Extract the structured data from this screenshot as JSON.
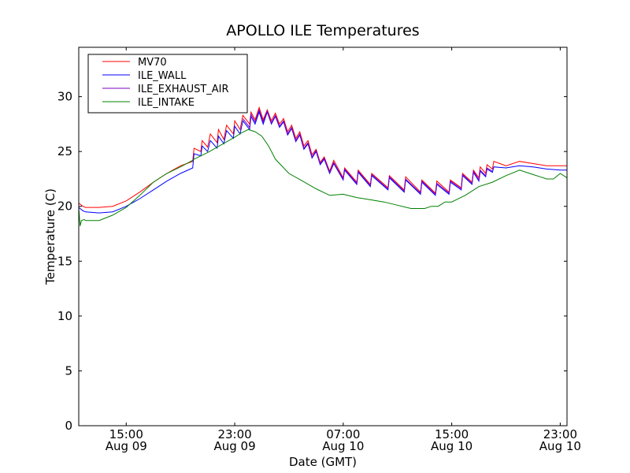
{
  "chart_data": {
    "type": "line",
    "title": "APOLLO ILE Temperatures",
    "xlabel": "Date (GMT)",
    "ylabel": "Temperature (C)",
    "x_unit": "hours since Aug 09 00:00 GMT",
    "xlim": [
      11.5,
      47.5
    ],
    "ylim": [
      0,
      34.5
    ],
    "yticks": [
      0,
      5,
      10,
      15,
      20,
      25,
      30
    ],
    "xticks": [
      {
        "x": 15,
        "line1": "15:00",
        "line2": "Aug 09"
      },
      {
        "x": 23,
        "line1": "23:00",
        "line2": "Aug 09"
      },
      {
        "x": 31,
        "line1": "07:00",
        "line2": "Aug 10"
      },
      {
        "x": 39,
        "line1": "15:00",
        "line2": "Aug 10"
      },
      {
        "x": 47,
        "line1": "23:00",
        "line2": "Aug 10"
      }
    ],
    "legend_position": "top-left",
    "series": [
      {
        "name": "MV70",
        "color": "#ff0000",
        "x": [
          11.5,
          11.8,
          12,
          13,
          14,
          15,
          16,
          17,
          18,
          19,
          19.9,
          20,
          20.5,
          20.6,
          21,
          21.2,
          21.7,
          21.8,
          22.2,
          22.4,
          22.9,
          23,
          23.4,
          23.6,
          24.1,
          24.2,
          24.5,
          24.8,
          25.1,
          25.4,
          25.7,
          26,
          26.3,
          26.6,
          26.9,
          27.2,
          27.5,
          27.8,
          28.1,
          28.4,
          28.7,
          29,
          29.3,
          29.6,
          30,
          30.3,
          31,
          31.1,
          32,
          32.1,
          33,
          33.1,
          34.3,
          34.4,
          35.5,
          35.6,
          36.7,
          36.8,
          37.8,
          37.9,
          38.8,
          38.9,
          39.7,
          39.8,
          40.5,
          40.6,
          41,
          41.1,
          41.5,
          41.6,
          42,
          42.1,
          43,
          44,
          45,
          46,
          47,
          47.5
        ],
        "values": [
          20.3,
          20.0,
          19.9,
          19.9,
          20.0,
          20.5,
          21.3,
          22.2,
          23.0,
          23.7,
          24.1,
          25.3,
          25.0,
          26.0,
          25.4,
          26.6,
          25.8,
          27.0,
          26.1,
          27.4,
          26.6,
          27.8,
          27.0,
          28.3,
          27.5,
          28.6,
          27.9,
          29.0,
          27.9,
          28.8,
          27.8,
          28.5,
          27.5,
          28.0,
          26.8,
          27.4,
          26.2,
          26.8,
          25.5,
          26.0,
          24.7,
          25.2,
          24.0,
          24.5,
          23.2,
          24.2,
          22.6,
          23.5,
          22.2,
          23.3,
          22.0,
          23.0,
          21.7,
          22.8,
          21.5,
          22.7,
          21.3,
          22.4,
          21.2,
          22.3,
          21.3,
          22.4,
          21.7,
          23.0,
          22.2,
          23.3,
          22.6,
          23.6,
          23.0,
          23.8,
          23.4,
          24.1,
          23.7,
          24.1,
          23.9,
          23.7,
          23.7,
          23.7
        ]
      },
      {
        "name": "ILE_WALL",
        "color": "#0000ff",
        "x": [
          11.5,
          11.8,
          12,
          13,
          14,
          15,
          16,
          17,
          18,
          19,
          19.9,
          20,
          20.5,
          20.6,
          21,
          21.2,
          21.7,
          21.8,
          22.2,
          22.4,
          22.9,
          23,
          23.4,
          23.6,
          24.1,
          24.2,
          24.5,
          24.8,
          25.1,
          25.4,
          25.7,
          26,
          26.3,
          26.6,
          26.9,
          27.2,
          27.5,
          27.8,
          28.1,
          28.4,
          28.7,
          29,
          29.3,
          29.6,
          30,
          30.3,
          31,
          31.1,
          32,
          32.1,
          33,
          33.1,
          34.3,
          34.4,
          35.5,
          35.6,
          36.7,
          36.8,
          37.8,
          37.9,
          38.8,
          38.9,
          39.7,
          39.8,
          40.5,
          40.6,
          41,
          41.1,
          41.5,
          41.6,
          42,
          42.1,
          43,
          44,
          45,
          46,
          47,
          47.5
        ],
        "values": [
          19.9,
          19.6,
          19.5,
          19.4,
          19.5,
          20.0,
          20.7,
          21.5,
          22.3,
          23.0,
          23.5,
          24.8,
          24.6,
          25.5,
          25.0,
          26.0,
          25.3,
          26.4,
          25.7,
          26.9,
          26.2,
          27.3,
          26.6,
          27.8,
          27.0,
          28.2,
          27.5,
          28.6,
          27.5,
          28.6,
          27.5,
          28.2,
          27.2,
          27.7,
          26.5,
          27.1,
          25.9,
          26.5,
          25.2,
          25.7,
          24.4,
          25.0,
          23.8,
          24.3,
          23.0,
          23.9,
          22.4,
          23.3,
          22.0,
          23.1,
          21.8,
          22.8,
          21.5,
          22.6,
          21.3,
          22.4,
          21.1,
          22.2,
          21.0,
          22.0,
          21.1,
          22.2,
          21.5,
          22.8,
          22.0,
          23.1,
          22.3,
          23.2,
          22.7,
          23.4,
          23.1,
          23.6,
          23.5,
          23.7,
          23.6,
          23.4,
          23.3,
          23.3
        ]
      },
      {
        "name": "ILE_EXHAUST_AIR",
        "color": "#7f00bf",
        "x": [
          23.6,
          24.1,
          24.2,
          24.5,
          24.8,
          25.1,
          25.4,
          25.7,
          26,
          26.3,
          26.6,
          26.9,
          27.2,
          27.5,
          27.8,
          28.1,
          28.4,
          28.7,
          29,
          29.3,
          29.6,
          30,
          30.3,
          31,
          31.1,
          32,
          32.1,
          33,
          33.1,
          34.3,
          34.4,
          35.5,
          35.6,
          36.7,
          36.8,
          37.8,
          37.9,
          38.8,
          38.9,
          39.7,
          39.8,
          40.5,
          40.6,
          41,
          41.1,
          41.5,
          41.6,
          42
        ],
        "values": [
          28.0,
          27.2,
          28.4,
          27.7,
          28.8,
          27.7,
          28.7,
          27.6,
          28.3,
          27.3,
          27.8,
          26.6,
          27.2,
          26.0,
          26.6,
          25.3,
          25.8,
          24.5,
          25.1,
          23.9,
          24.4,
          23.1,
          24.0,
          22.5,
          23.4,
          22.1,
          23.2,
          21.9,
          22.9,
          21.6,
          22.7,
          21.4,
          22.5,
          21.2,
          22.3,
          21.1,
          22.1,
          21.2,
          22.3,
          21.6,
          22.9,
          22.1,
          23.2,
          22.4,
          23.3,
          22.8,
          23.5,
          23.2
        ]
      },
      {
        "name": "ILE_INTAKE",
        "color": "#008000",
        "x": [
          11.5,
          11.6,
          11.7,
          11.9,
          12,
          13,
          14,
          15,
          16,
          17,
          18,
          19,
          19.9,
          20,
          21,
          22,
          23,
          23.5,
          24,
          24.5,
          25,
          25.5,
          26,
          27,
          28,
          29,
          30,
          31,
          32,
          33,
          34,
          35,
          36,
          37,
          37.5,
          38,
          38.5,
          39,
          40,
          41,
          42,
          43,
          44,
          45,
          45.5,
          46,
          46.5,
          47,
          47.5
        ],
        "values": [
          19.9,
          18.2,
          18.7,
          18.8,
          18.7,
          18.7,
          19.2,
          19.9,
          21.0,
          22.2,
          23.0,
          23.6,
          24.2,
          24.3,
          24.9,
          25.6,
          26.3,
          26.7,
          27.0,
          26.8,
          26.4,
          25.5,
          24.3,
          23.0,
          22.3,
          21.6,
          21.0,
          21.1,
          20.8,
          20.6,
          20.4,
          20.1,
          19.8,
          19.8,
          20.0,
          20.0,
          20.4,
          20.4,
          21.0,
          21.8,
          22.2,
          22.8,
          23.3,
          22.9,
          22.7,
          22.5,
          22.5,
          23.0,
          22.6
        ]
      }
    ]
  }
}
